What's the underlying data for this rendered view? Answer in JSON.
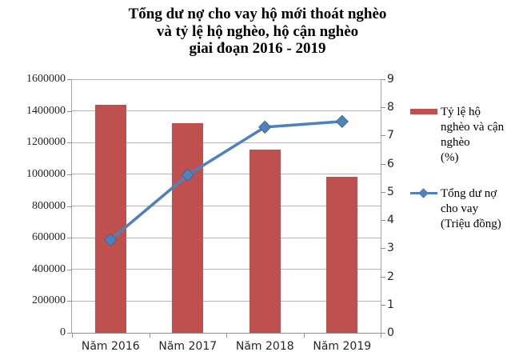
{
  "chart_data": {
    "type": "bar+line combo",
    "title": "Tổng dư nợ cho vay hộ mới thoát nghèo\nvà tỷ lệ hộ nghèo, hộ cận nghèo\ngiai đoạn 2016 - 2019",
    "categories": [
      "Năm 2016",
      "Năm 2017",
      "Năm 2018",
      "Năm 2019"
    ],
    "series": [
      {
        "name": "Tỷ lệ hộ nghèo và cận nghèo (%)",
        "type": "bar",
        "axis": "left",
        "color": "#C0504D",
        "values": [
          1440000,
          1320000,
          1155000,
          985000
        ]
      },
      {
        "name": "Tổng dư nợ cho vay (Triệu đồng)",
        "type": "line",
        "axis": "right",
        "color": "#4F81BD",
        "marker": "diamond",
        "values": [
          3.3,
          5.6,
          7.3,
          7.5
        ]
      }
    ],
    "left_axis": {
      "min": 0,
      "max": 1600000,
      "step": 200000,
      "tick_labels": [
        "0",
        "200000",
        "400000",
        "600000",
        "800000",
        "1000000",
        "1200000",
        "1400000",
        "1600000"
      ]
    },
    "right_axis": {
      "min": 0,
      "max": 9,
      "step": 1,
      "tick_labels": [
        "0",
        "1",
        "2",
        "3",
        "4",
        "5",
        "6",
        "7",
        "8",
        "9"
      ]
    },
    "grid": true,
    "legend_position": "right"
  },
  "legend": {
    "items": [
      {
        "label": "Tỷ lệ hộ\nnghèo và cận\nnghèo\n(%)",
        "swatch": "bar",
        "color": "#C0504D"
      },
      {
        "label": "Tổng dư nợ\ncho vay\n(Triệu đồng)",
        "swatch": "line-diamond",
        "color": "#4F81BD"
      }
    ]
  },
  "colors": {
    "bar": "#C0504D",
    "line": "#4F81BD",
    "gridline": "#B5B5B5",
    "axis": "#8F8F8F",
    "text": "#262626",
    "title": "#000000"
  }
}
